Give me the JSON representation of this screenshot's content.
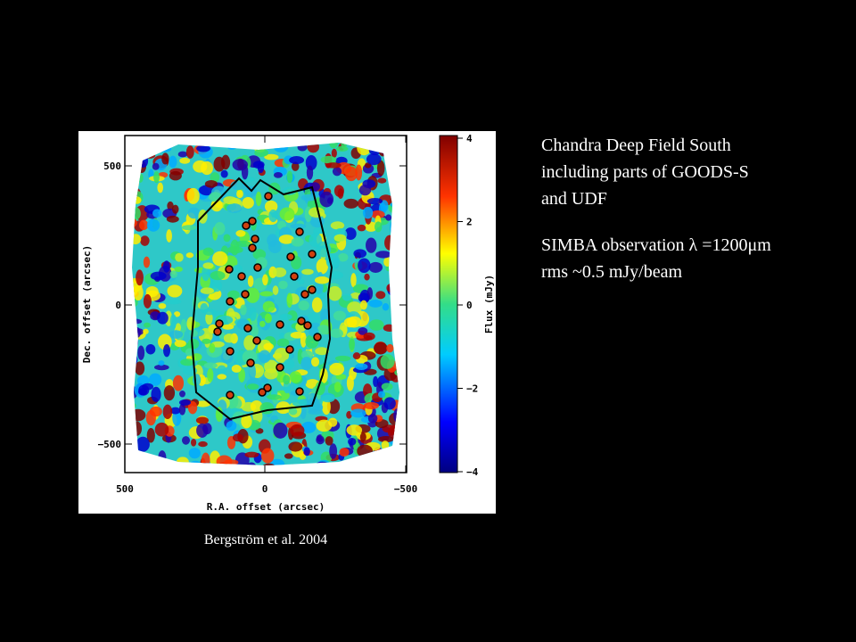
{
  "figure": {
    "x_label": "R.A. offset (arcsec)",
    "y_label": "Dec. offset (arcsec)",
    "xticks": [
      "500",
      "0",
      "−500"
    ],
    "yticks": [
      "500",
      "0",
      "−500"
    ],
    "colorbar_label": "Flux (mJy)",
    "colorbar_ticks": [
      "4",
      "2",
      "0",
      "−2",
      "−4"
    ],
    "caption": "Bergström et al. 2004"
  },
  "text": {
    "lines": [
      "Chandra Deep Field South",
      "including parts of GOODS-S",
      "and UDF"
    ],
    "lines2": [
      "SIMBA observation λ =1200μm",
      "rms ~0.5 mJy/beam"
    ]
  }
}
